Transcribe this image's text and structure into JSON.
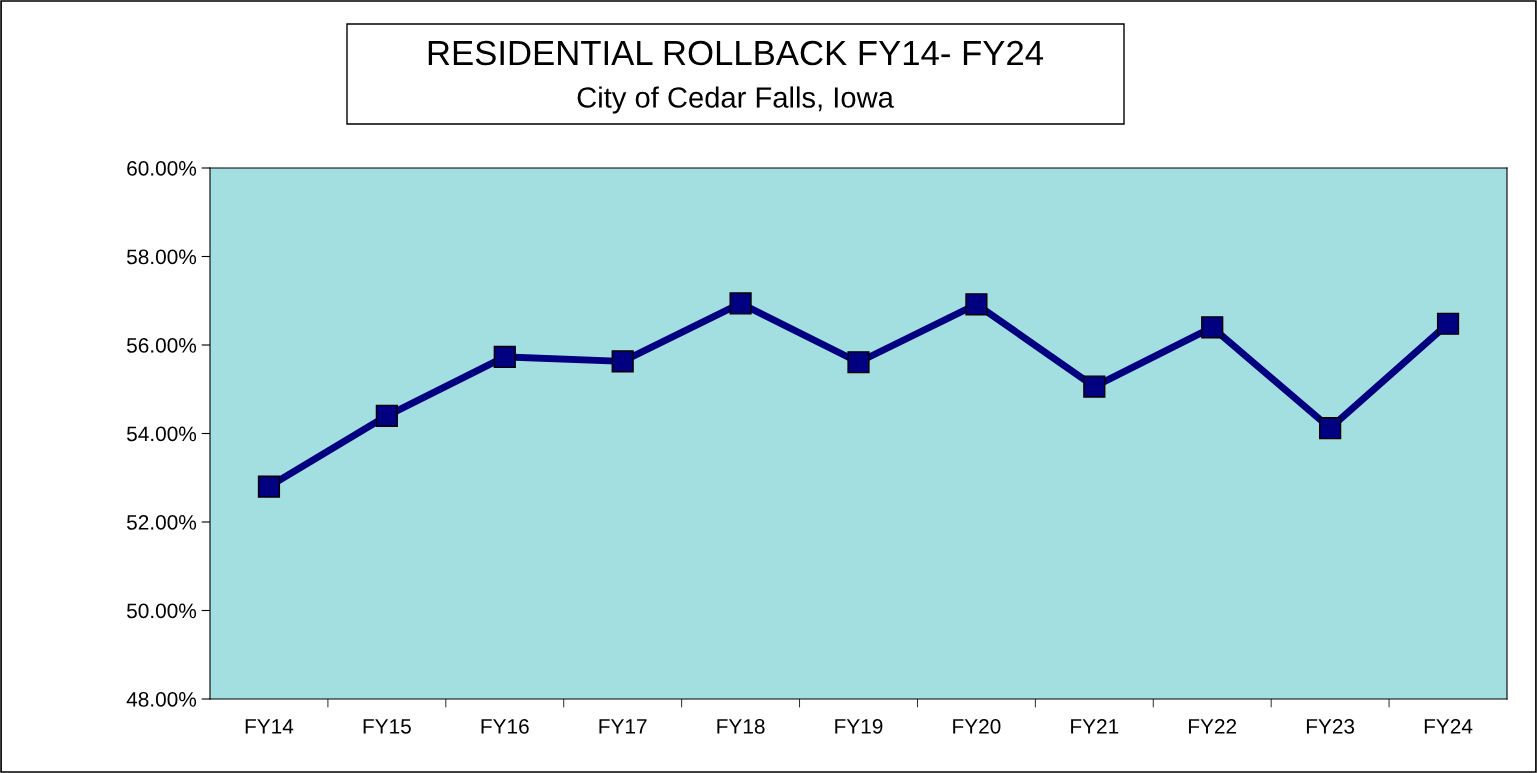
{
  "chart_data": {
    "type": "line",
    "title": "RESIDENTIAL ROLLBACK FY14- FY24",
    "subtitle": "City of Cedar Falls, Iowa",
    "categories": [
      "FY14",
      "FY15",
      "FY16",
      "FY17",
      "FY18",
      "FY19",
      "FY20",
      "FY21",
      "FY22",
      "FY23",
      "FY24"
    ],
    "series": [
      {
        "color": "#000080",
        "values": [
          52.8,
          54.4,
          55.73,
          55.63,
          56.94,
          55.61,
          56.92,
          55.06,
          56.4,
          54.12,
          56.48
        ]
      }
    ],
    "ylim": [
      48,
      60
    ],
    "yticks": [
      {
        "value": 48,
        "label": "48.00%"
      },
      {
        "value": 50,
        "label": "50.00%"
      },
      {
        "value": 52,
        "label": "52.00%"
      },
      {
        "value": 54,
        "label": "54.00%"
      },
      {
        "value": 56,
        "label": "56.00%"
      },
      {
        "value": 58,
        "label": "58.00%"
      },
      {
        "value": 60,
        "label": "60.00%"
      }
    ],
    "grid": false,
    "legend": false,
    "marker": "square",
    "line_style": "solid"
  }
}
